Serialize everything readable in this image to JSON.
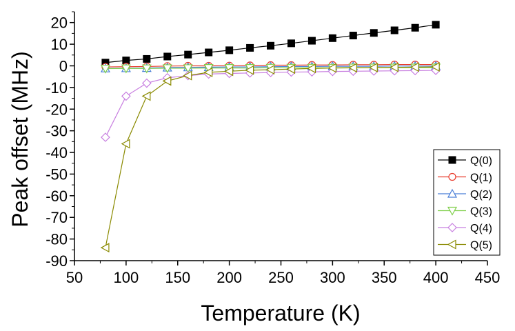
{
  "chart_data": {
    "type": "line",
    "title": "",
    "xlabel": "Temperature (K)",
    "ylabel": "Peak offset (MHz)",
    "xlim": [
      50,
      450
    ],
    "ylim": [
      -90,
      25
    ],
    "xticks": [
      50,
      100,
      150,
      200,
      250,
      300,
      350,
      400,
      450
    ],
    "yticks": [
      -90,
      -80,
      -70,
      -60,
      -50,
      -40,
      -30,
      -20,
      -10,
      0,
      10,
      20
    ],
    "x": [
      80,
      100,
      120,
      140,
      160,
      180,
      200,
      220,
      240,
      260,
      280,
      300,
      320,
      340,
      360,
      380,
      400
    ],
    "legend_position": "bottom-right",
    "grid": false,
    "series": [
      {
        "name": "Q(0)",
        "marker": "square-filled",
        "color": "#000000",
        "values": [
          1.5,
          2.5,
          3.2,
          4.3,
          5.2,
          6.2,
          7.2,
          8.3,
          9.3,
          10.4,
          11.6,
          12.8,
          14.0,
          15.2,
          16.4,
          17.6,
          19.0
        ]
      },
      {
        "name": "Q(1)",
        "marker": "circle-open",
        "color": "#e8392a",
        "values": [
          -0.5,
          -0.4,
          -0.3,
          -0.1,
          0.0,
          0.0,
          0.1,
          0.2,
          0.3,
          0.3,
          0.4,
          0.4,
          0.5,
          0.5,
          0.6,
          0.6,
          0.6
        ]
      },
      {
        "name": "Q(2)",
        "marker": "triangle-up-open",
        "color": "#4a7fd8",
        "values": [
          -1.2,
          -1.1,
          -1.0,
          -0.8,
          -0.7,
          -0.6,
          -0.5,
          -0.5,
          -0.4,
          -0.3,
          -0.3,
          -0.2,
          -0.2,
          -0.2,
          -0.1,
          -0.1,
          -0.1
        ]
      },
      {
        "name": "Q(3)",
        "marker": "triangle-down-open",
        "color": "#7fcf4a",
        "values": [
          -1.3,
          -1.2,
          -1.2,
          -1.1,
          -1.1,
          -1.0,
          -1.0,
          -1.0,
          -0.9,
          -0.9,
          -0.9,
          -0.9,
          -0.8,
          -0.8,
          -0.8,
          -0.8,
          -0.8
        ]
      },
      {
        "name": "Q(4)",
        "marker": "diamond-open",
        "color": "#c87fe0",
        "values": [
          -33.0,
          -14.0,
          -8.0,
          -5.5,
          -4.5,
          -3.8,
          -3.5,
          -3.3,
          -3.1,
          -2.9,
          -2.8,
          -2.6,
          -2.5,
          -2.4,
          -2.3,
          -2.2,
          -2.1
        ]
      },
      {
        "name": "Q(5)",
        "marker": "triangle-left-open",
        "color": "#8a8a00",
        "values": [
          -84.0,
          -36.0,
          -14.0,
          -7.0,
          -4.5,
          -3.0,
          -2.5,
          -2.0,
          -1.8,
          -1.5,
          -1.2,
          -1.0,
          -0.9,
          -0.8,
          -0.7,
          -0.6,
          -0.5
        ]
      }
    ]
  }
}
